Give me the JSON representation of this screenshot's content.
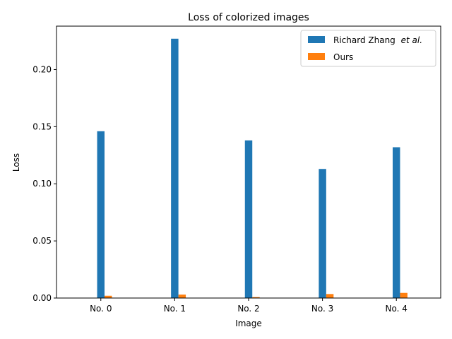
{
  "chart_data": {
    "type": "bar",
    "title": "Loss of colorized images",
    "xlabel": "Image",
    "ylabel": "Loss",
    "categories": [
      "No. 0",
      "No. 1",
      "No. 2",
      "No. 3",
      "No. 4"
    ],
    "series": [
      {
        "name": "Richard Zhang",
        "name_suffix": "et al.",
        "color": "#1f77b4",
        "values": [
          0.146,
          0.227,
          0.138,
          0.113,
          0.132
        ]
      },
      {
        "name": "Ours",
        "color": "#ff7f0e",
        "values": [
          0.002,
          0.003,
          0.0008,
          0.0035,
          0.0045
        ]
      }
    ],
    "ylim": [
      0,
      0.238
    ],
    "yticks": [
      "0.00",
      "0.05",
      "0.10",
      "0.15",
      "0.20"
    ],
    "ytick_values": [
      0,
      0.05,
      0.1,
      0.15,
      0.2
    ],
    "legend_position": "top-right",
    "grid": false
  }
}
